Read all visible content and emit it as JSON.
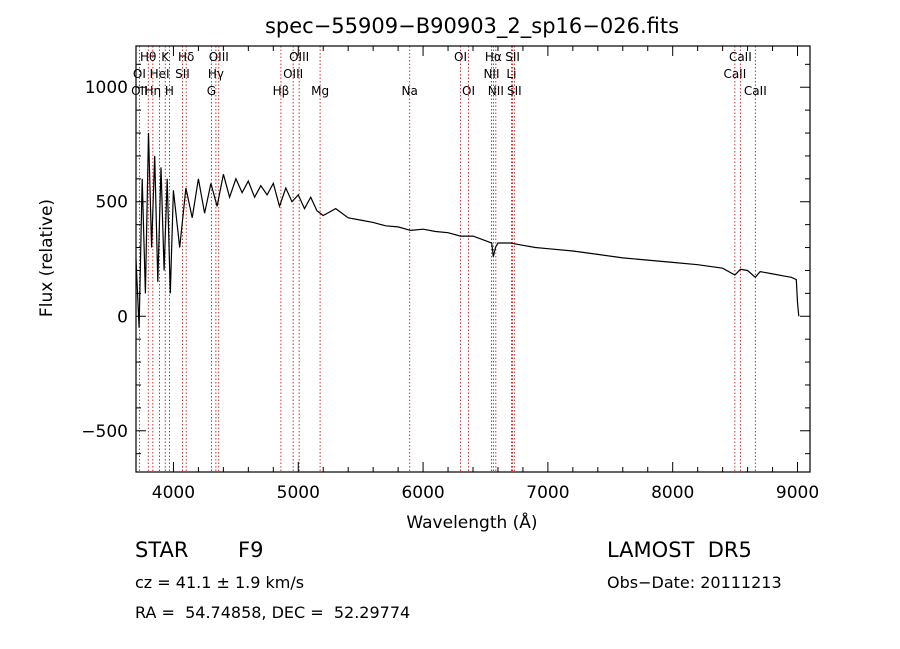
{
  "chart_data": {
    "type": "line",
    "title": "spec−55909−B90903_2_sp16−026.fits",
    "xlabel": "Wavelength (Å)",
    "ylabel": "Flux (relative)",
    "xlim": [
      3700,
      9100
    ],
    "ylim": [
      -680,
      1180
    ],
    "x_ticks": [
      4000,
      5000,
      6000,
      7000,
      8000,
      9000
    ],
    "x_tick_labels": [
      "4000",
      "5000",
      "6000",
      "7000",
      "8000",
      "9000"
    ],
    "y_ticks": [
      -500,
      0,
      500,
      1000
    ],
    "y_tick_labels": [
      "−500",
      "0",
      "500",
      "1000"
    ],
    "grid": false,
    "series": [
      {
        "x": [
          3700,
          3725,
          3750,
          3775,
          3800,
          3825,
          3850,
          3875,
          3900,
          3925,
          3950,
          3975,
          4000,
          4050,
          4100,
          4150,
          4200,
          4250,
          4300,
          4350,
          4400,
          4450,
          4500,
          4550,
          4600,
          4650,
          4700,
          4750,
          4800,
          4850,
          4900,
          4950,
          5000,
          5050,
          5100,
          5150,
          5200,
          5300,
          5400,
          5500,
          5600,
          5700,
          5800,
          5900,
          6000,
          6100,
          6200,
          6300,
          6400,
          6500,
          6550,
          6563,
          6580,
          6600,
          6700,
          6800,
          6900,
          7000,
          7200,
          7400,
          7600,
          7800,
          8000,
          8200,
          8400,
          8498,
          8542,
          8600,
          8662,
          8700,
          8800,
          8900,
          8950,
          8990,
          9000,
          9010
        ],
        "y": [
          250,
          -50,
          600,
          100,
          800,
          300,
          700,
          150,
          650,
          200,
          600,
          100,
          550,
          300,
          560,
          430,
          600,
          450,
          580,
          480,
          620,
          520,
          600,
          540,
          590,
          520,
          570,
          530,
          580,
          480,
          560,
          500,
          530,
          470,
          520,
          460,
          440,
          470,
          430,
          420,
          410,
          395,
          390,
          375,
          380,
          370,
          365,
          350,
          350,
          330,
          320,
          260,
          300,
          320,
          320,
          310,
          300,
          295,
          285,
          270,
          255,
          245,
          235,
          225,
          210,
          180,
          205,
          200,
          170,
          195,
          185,
          175,
          170,
          160,
          60,
          0
        ]
      }
    ],
    "line_labels": [
      {
        "label": "Hθ",
        "x": 3798,
        "row": 1
      },
      {
        "label": "K",
        "x": 3934,
        "row": 1
      },
      {
        "label": "Hδ",
        "x": 4102,
        "row": 1
      },
      {
        "label": "OIII",
        "x": 4363,
        "row": 1
      },
      {
        "label": "OIII",
        "x": 5007,
        "row": 1
      },
      {
        "label": "OI",
        "x": 6300,
        "row": 1
      },
      {
        "label": "Hα",
        "x": 6563,
        "row": 1
      },
      {
        "label": "SII",
        "x": 6717,
        "row": 1
      },
      {
        "label": "CaII",
        "x": 8542,
        "row": 1
      },
      {
        "label": "OI",
        "x": 3727,
        "row": 2
      },
      {
        "label": "HeI",
        "x": 3889,
        "row": 2
      },
      {
        "label": "SII",
        "x": 4072,
        "row": 2
      },
      {
        "label": "Hγ",
        "x": 4340,
        "row": 2
      },
      {
        "label": "OIII",
        "x": 4959,
        "row": 2
      },
      {
        "label": "NII",
        "x": 6548,
        "row": 2
      },
      {
        "label": "Li",
        "x": 6708,
        "row": 2
      },
      {
        "label": "CaII",
        "x": 8498,
        "row": 2
      },
      {
        "label": "OII",
        "x": 3727,
        "row": 3
      },
      {
        "label": "Hη",
        "x": 3835,
        "row": 3
      },
      {
        "label": "H",
        "x": 3968,
        "row": 3
      },
      {
        "label": "G",
        "x": 4304,
        "row": 3
      },
      {
        "label": "Hβ",
        "x": 4861,
        "row": 3
      },
      {
        "label": "Mg",
        "x": 5175,
        "row": 3
      },
      {
        "label": "Na",
        "x": 5893,
        "row": 3
      },
      {
        "label": "OI",
        "x": 6364,
        "row": 3
      },
      {
        "label": "NII",
        "x": 6583,
        "row": 3
      },
      {
        "label": "SII",
        "x": 6731,
        "row": 3
      },
      {
        "label": "CaII",
        "x": 8662,
        "row": 3
      }
    ],
    "line_color": "#c00000"
  },
  "info": {
    "class_text": "STAR",
    "subclass_text": "F9",
    "survey_text": "LAMOST  DR5",
    "redshift_text": "cz = 41.1 ± 1.9 km/s",
    "obs_date_text": "Obs−Date: 20111213",
    "coords_text": "RA =  54.74858, DEC =  52.29774"
  }
}
